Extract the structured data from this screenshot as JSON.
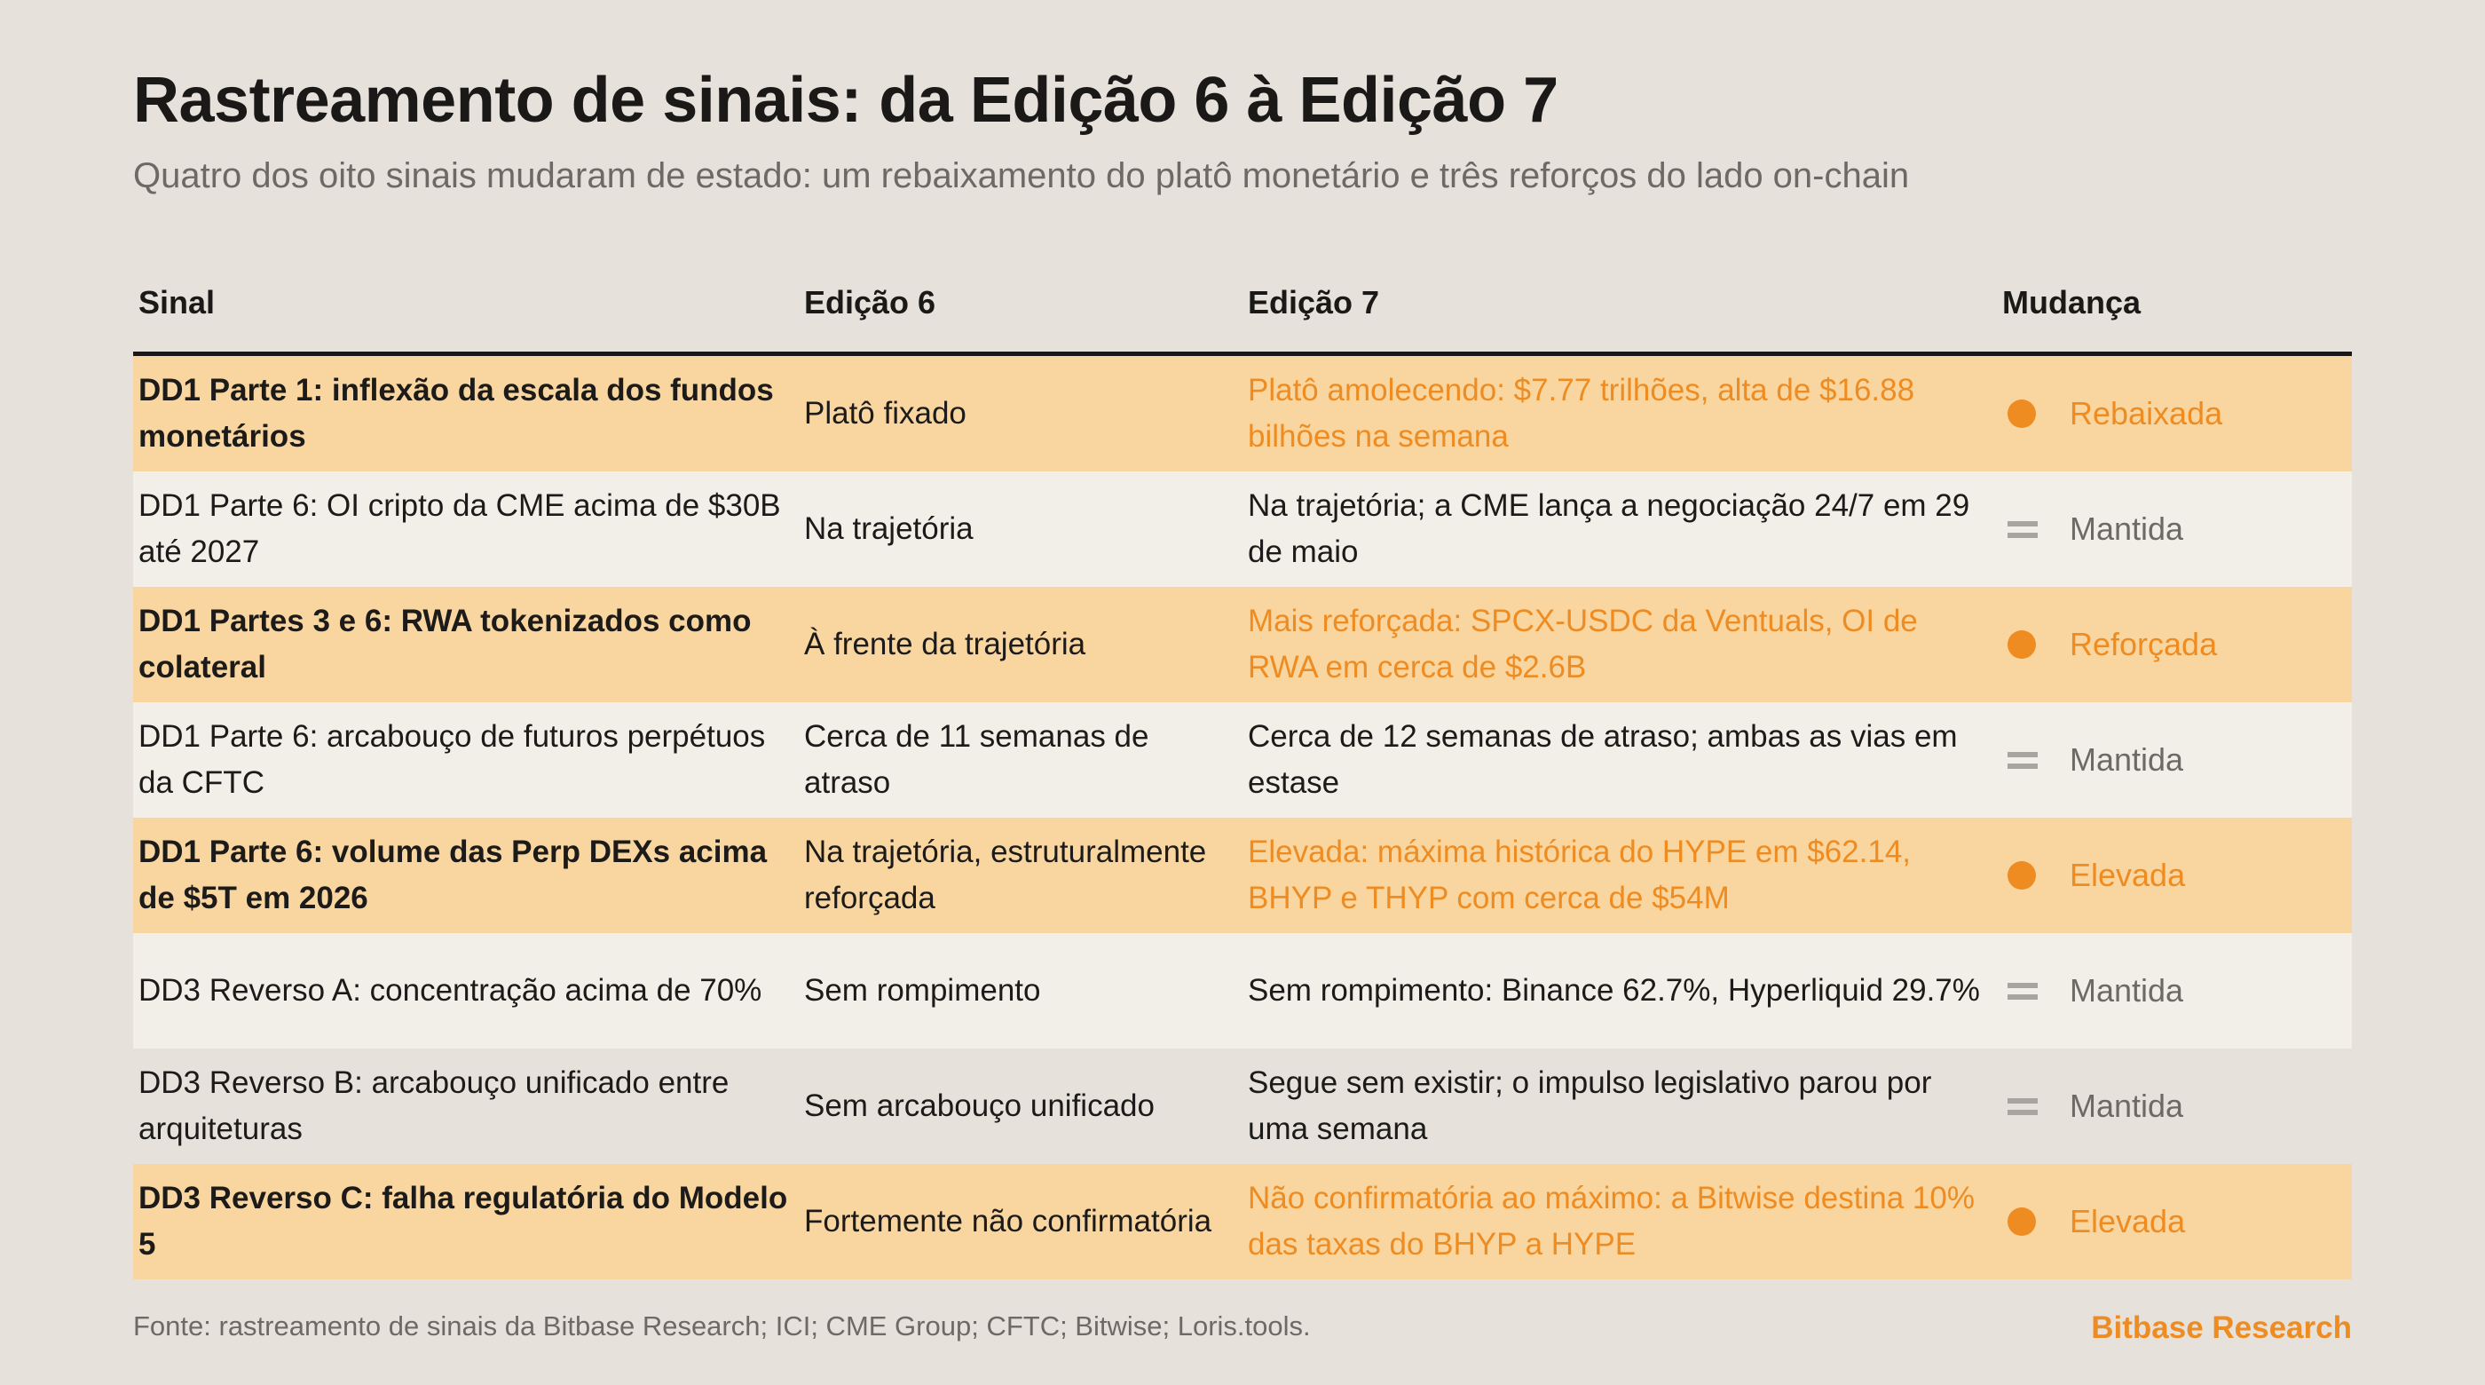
{
  "title": "Rastreamento de sinais: da Edição 6 à Edição 7",
  "subtitle": "Quatro dos oito sinais mudaram de estado: um rebaixamento do platô monetário e três reforços do lado on-chain",
  "colors": {
    "accent": "#ee8c22",
    "highlight_row": "#f9d6a0",
    "neutral_row": "#f2efe9",
    "background": "#e6e1db",
    "muted_text": "#6d6a66"
  },
  "chart_data": {
    "type": "table",
    "columns": [
      "Sinal",
      "Edição 6",
      "Edição 7",
      "Mudança"
    ],
    "rows": [
      {
        "signal": "DD1 Parte 1: inflexão da escala dos fundos monetários",
        "ed6": "Platô fixado",
        "ed7": "Platô amolecendo: $7.77 trilhões, alta de $16.88 bilhões na semana",
        "change": "Rebaixada",
        "changed": true,
        "marker": "dot"
      },
      {
        "signal": "DD1 Parte 6: OI cripto da CME acima de $30B até 2027",
        "ed6": "Na trajetória",
        "ed7": "Na trajetória; a CME lança a negociação 24/7 em 29 de maio",
        "change": "Mantida",
        "changed": false,
        "marker": "equals"
      },
      {
        "signal": "DD1 Partes 3 e 6: RWA tokenizados como colateral",
        "ed6": "À frente da trajetória",
        "ed7": "Mais reforçada: SPCX-USDC da Ventuals, OI de RWA em cerca de $2.6B",
        "change": "Reforçada",
        "changed": true,
        "marker": "dot"
      },
      {
        "signal": "DD1 Parte 6: arcabouço de futuros perpétuos da CFTC",
        "ed6": "Cerca de 11 semanas de atraso",
        "ed7": "Cerca de 12 semanas de atraso; ambas as vias em estase",
        "change": "Mantida",
        "changed": false,
        "marker": "equals"
      },
      {
        "signal": "DD1 Parte 6: volume das Perp DEXs acima de $5T em 2026",
        "ed6": "Na trajetória, estruturalmente reforçada",
        "ed7": "Elevada: máxima histórica do HYPE em $62.14, BHYP e THYP com cerca de $54M",
        "change": "Elevada",
        "changed": true,
        "marker": "dot"
      },
      {
        "signal": "DD3 Reverso A: concentração acima de 70%",
        "ed6": "Sem rompimento",
        "ed7": "Sem rompimento: Binance 62.7%, Hyperliquid 29.7%",
        "change": "Mantida",
        "changed": false,
        "marker": "equals"
      },
      {
        "signal": "DD3 Reverso B: arcabouço unificado entre arquiteturas",
        "ed6": "Sem arcabouço unificado",
        "ed7": "Segue sem existir; o impulso legislativo parou por uma semana",
        "change": "Mantida",
        "changed": false,
        "marker": "equals"
      },
      {
        "signal": "DD3 Reverso C: falha regulatória do Modelo 5",
        "ed6": "Fortemente não confirmatória",
        "ed7": "Não confirmatória ao máximo: a Bitwise destina 10% das taxas do BHYP a HYPE",
        "change": "Elevada",
        "changed": true,
        "marker": "dot"
      }
    ]
  },
  "footer": {
    "source": "Fonte: rastreamento de sinais da Bitbase Research; ICI; CME Group; CFTC; Bitwise; Loris.tools.",
    "brand": "Bitbase Research"
  }
}
